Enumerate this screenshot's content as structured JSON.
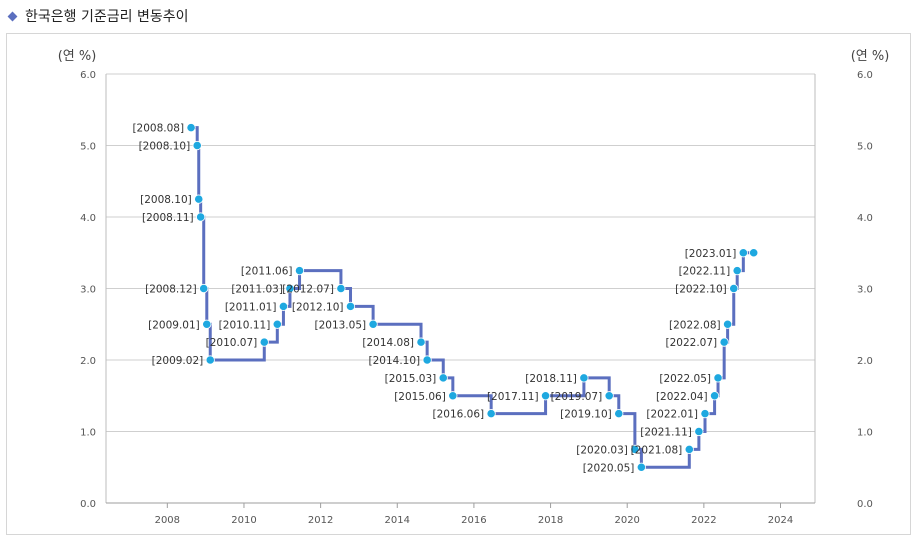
{
  "page": {
    "title": "한국은행 기준금리 변동추이"
  },
  "colors": {
    "line": "#5b6fbf",
    "point": "#1ea8e0",
    "grid": "#cfcfcf",
    "title_marker": "#5b6fbf"
  },
  "chart_data": {
    "type": "line",
    "title": "한국은행 기준금리 변동추이",
    "ylabel_left": "(연 %)",
    "ylabel_right": "(연 %)",
    "xlabel": "",
    "xlim": [
      2006.4,
      2024.9
    ],
    "ylim": [
      0,
      6
    ],
    "x_ticks": [
      2008,
      2010,
      2012,
      2014,
      2016,
      2018,
      2020,
      2022,
      2024
    ],
    "y_ticks": [
      0,
      1,
      2,
      3,
      4,
      5,
      6
    ],
    "y_tick_labels": [
      "0.0",
      "1.0",
      "2.0",
      "3.0",
      "4.0",
      "5.0",
      "6.0"
    ],
    "grid": "horizontal",
    "line_shape": "step",
    "points": [
      {
        "label": "[2008.08]",
        "x": 2008.62,
        "y": 5.25
      },
      {
        "label": "[2008.10]",
        "x": 2008.78,
        "y": 5.0
      },
      {
        "label": "[2008.10]",
        "x": 2008.82,
        "y": 4.25
      },
      {
        "label": "[2008.11]",
        "x": 2008.87,
        "y": 4.0
      },
      {
        "label": "[2008.12]",
        "x": 2008.95,
        "y": 3.0
      },
      {
        "label": "[2009.01]",
        "x": 2009.03,
        "y": 2.5
      },
      {
        "label": "[2009.02]",
        "x": 2009.12,
        "y": 2.0
      },
      {
        "label": "[2010.07]",
        "x": 2010.53,
        "y": 2.25
      },
      {
        "label": "[2010.11]",
        "x": 2010.87,
        "y": 2.5
      },
      {
        "label": "[2011.01]",
        "x": 2011.03,
        "y": 2.75
      },
      {
        "label": "[2011.03]",
        "x": 2011.2,
        "y": 3.0
      },
      {
        "label": "[2011.06]",
        "x": 2011.45,
        "y": 3.25
      },
      {
        "label": "[2012.07]",
        "x": 2012.53,
        "y": 3.0
      },
      {
        "label": "[2012.10]",
        "x": 2012.78,
        "y": 2.75
      },
      {
        "label": "[2013.05]",
        "x": 2013.37,
        "y": 2.5
      },
      {
        "label": "[2014.08]",
        "x": 2014.62,
        "y": 2.25
      },
      {
        "label": "[2014.10]",
        "x": 2014.78,
        "y": 2.0
      },
      {
        "label": "[2015.03]",
        "x": 2015.2,
        "y": 1.75
      },
      {
        "label": "[2015.06]",
        "x": 2015.45,
        "y": 1.5
      },
      {
        "label": "[2016.06]",
        "x": 2016.45,
        "y": 1.25
      },
      {
        "label": "[2017.11]",
        "x": 2017.87,
        "y": 1.5
      },
      {
        "label": "[2018.11]",
        "x": 2018.87,
        "y": 1.75
      },
      {
        "label": "[2019.07]",
        "x": 2019.53,
        "y": 1.5
      },
      {
        "label": "[2019.10]",
        "x": 2019.78,
        "y": 1.25
      },
      {
        "label": "[2020.03]",
        "x": 2020.2,
        "y": 0.75
      },
      {
        "label": "[2020.05]",
        "x": 2020.37,
        "y": 0.5
      },
      {
        "label": "[2021.08]",
        "x": 2021.62,
        "y": 0.75
      },
      {
        "label": "[2021.11]",
        "x": 2021.87,
        "y": 1.0
      },
      {
        "label": "[2022.01]",
        "x": 2022.03,
        "y": 1.25
      },
      {
        "label": "[2022.04]",
        "x": 2022.28,
        "y": 1.5
      },
      {
        "label": "[2022.05]",
        "x": 2022.37,
        "y": 1.75
      },
      {
        "label": "[2022.07]",
        "x": 2022.53,
        "y": 2.25
      },
      {
        "label": "[2022.08]",
        "x": 2022.62,
        "y": 2.5
      },
      {
        "label": "[2022.10]",
        "x": 2022.78,
        "y": 3.0
      },
      {
        "label": "[2022.11]",
        "x": 2022.87,
        "y": 3.25
      },
      {
        "label": "[2023.01]",
        "x": 2023.03,
        "y": 3.5
      },
      {
        "label": "",
        "x": 2023.3,
        "y": 3.5
      }
    ]
  }
}
